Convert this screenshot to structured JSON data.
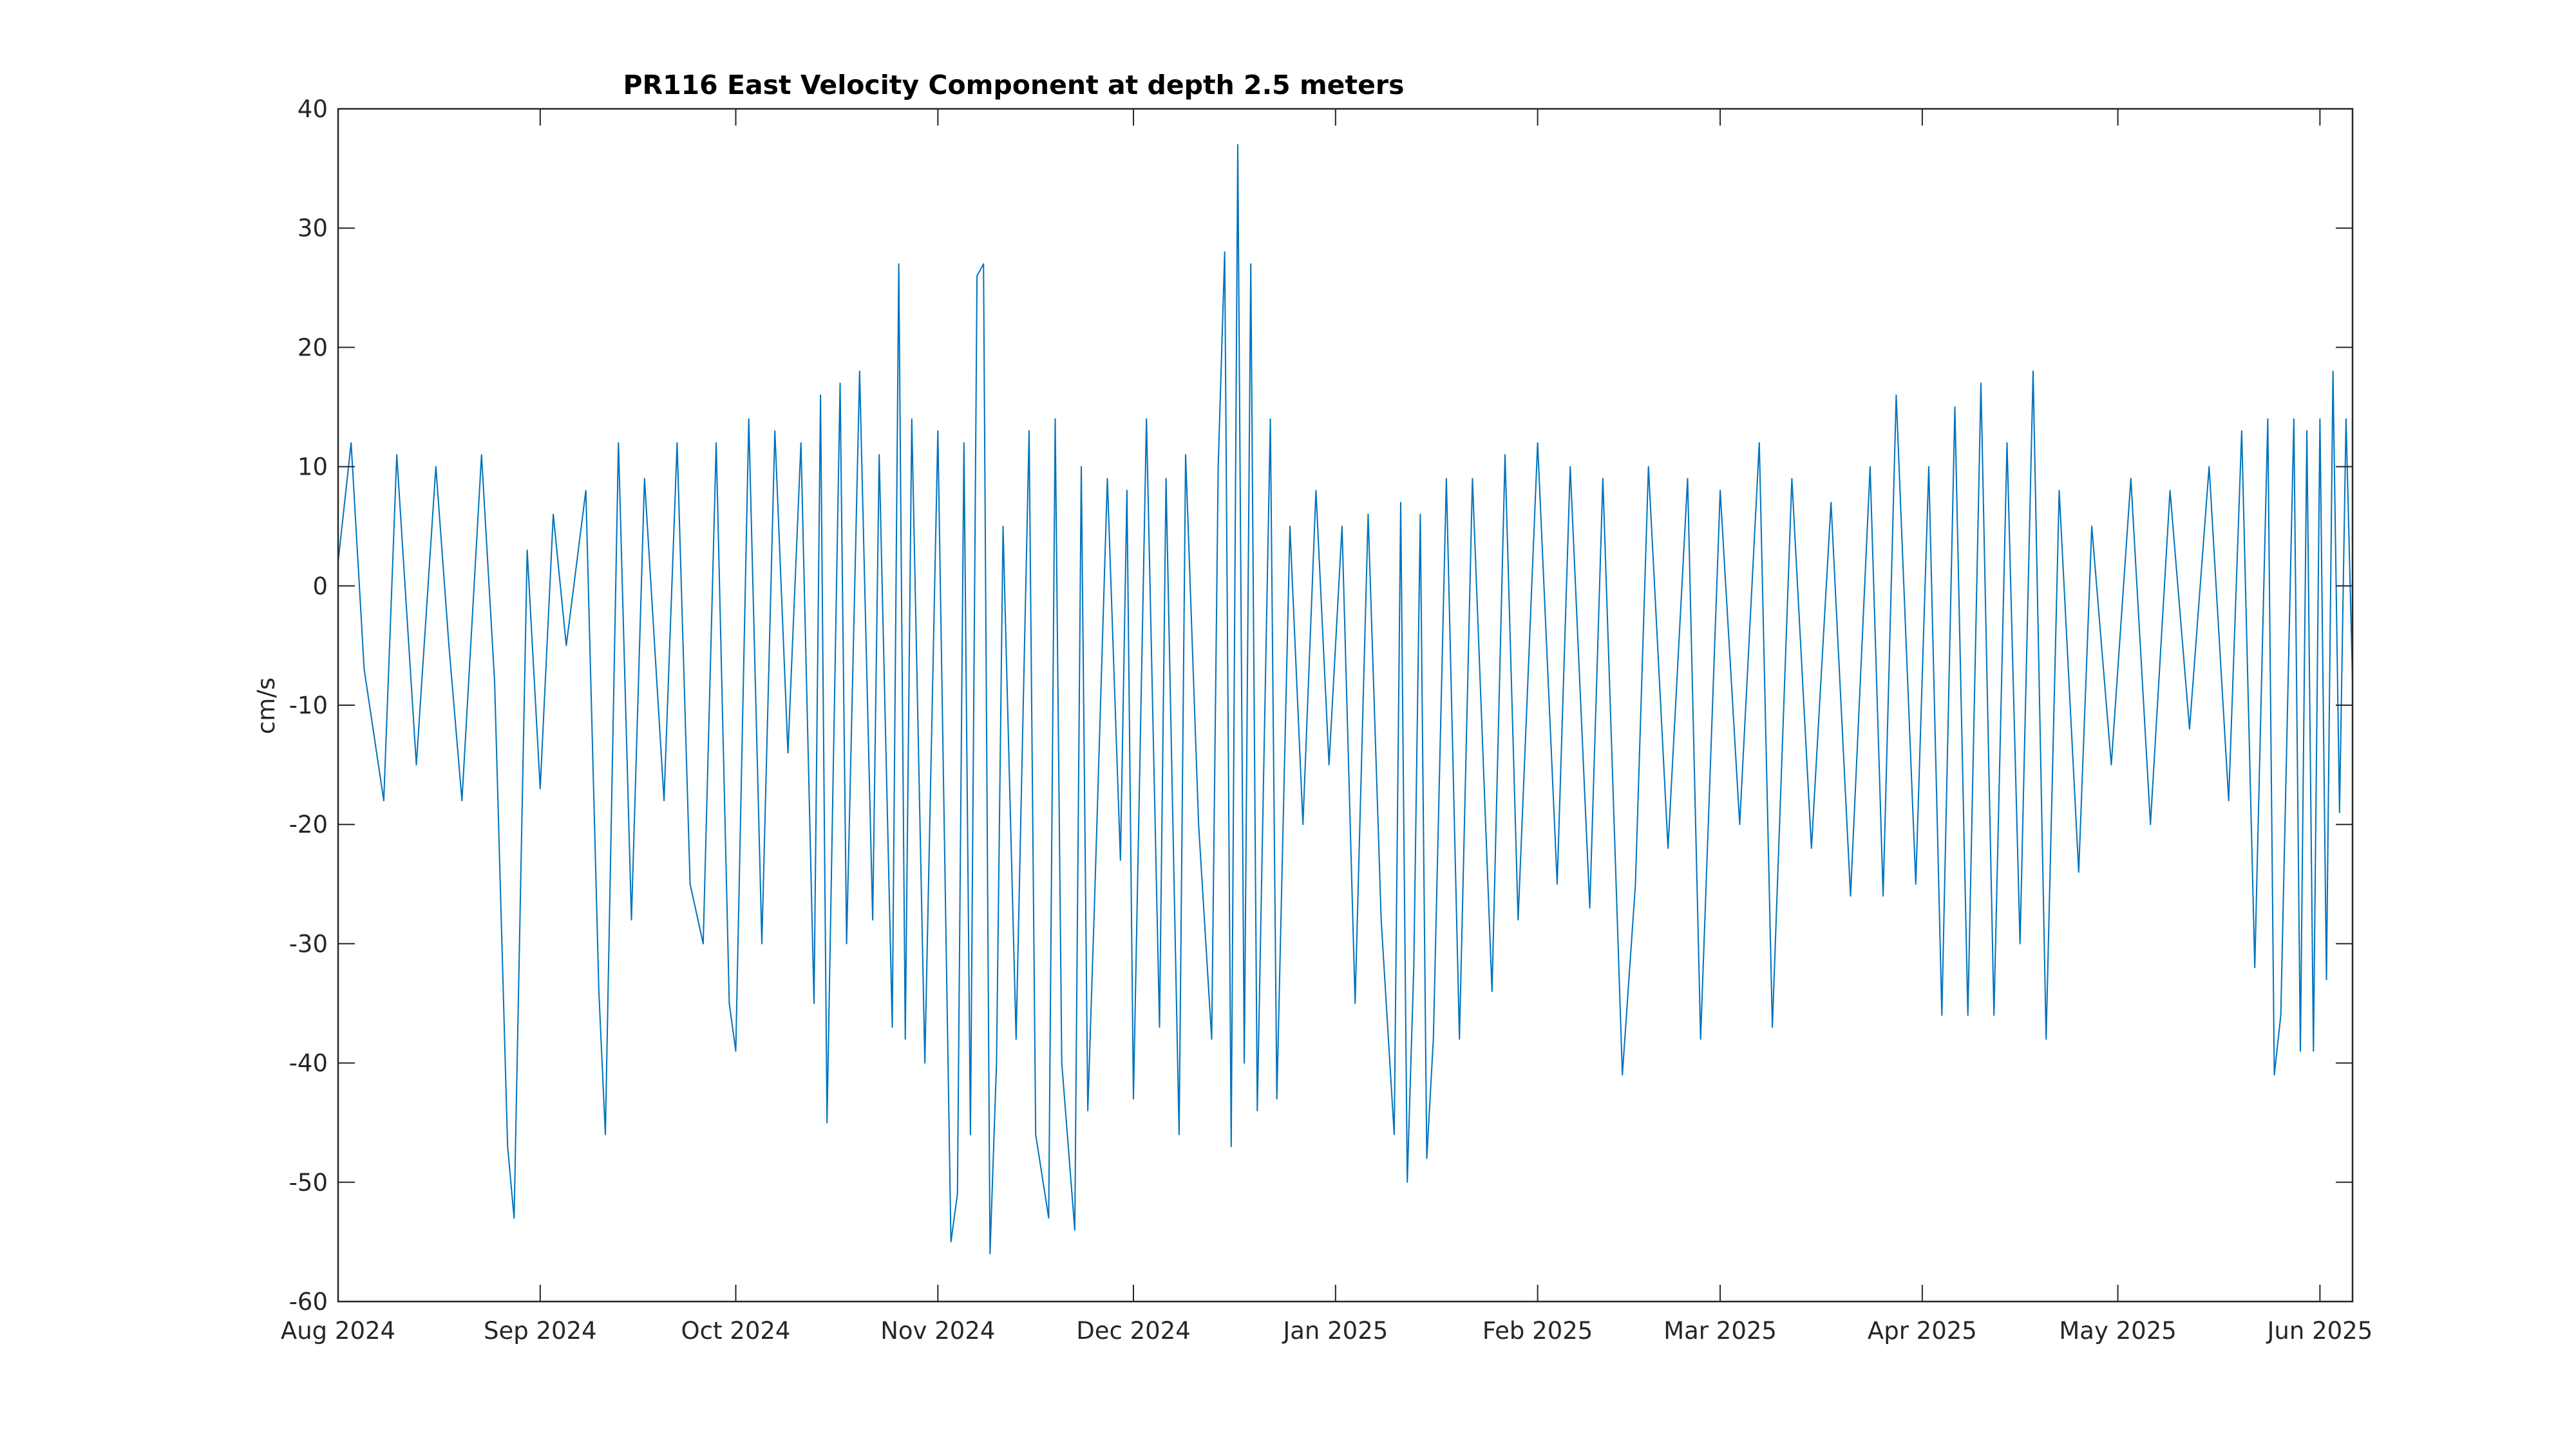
{
  "chart_data": {
    "type": "line",
    "title": "PR116 East Velocity Component at depth 2.5 meters",
    "xlabel": "",
    "ylabel": "cm/s",
    "xlim": [
      "2024-08-01",
      "2025-06-06"
    ],
    "ylim": [
      -60,
      40
    ],
    "yticks": [
      40,
      30,
      20,
      10,
      0,
      -10,
      -20,
      -30,
      -40,
      -50,
      -60
    ],
    "ytick_labels": [
      "40",
      "30",
      "20",
      "10",
      "0",
      "-10",
      "-20",
      "-30",
      "-40",
      "-50",
      "-60"
    ],
    "xticks": [
      "2024-08-01",
      "2024-09-01",
      "2024-10-01",
      "2024-11-01",
      "2024-12-01",
      "2025-01-01",
      "2025-02-01",
      "2025-03-01",
      "2025-04-01",
      "2025-05-01",
      "2025-06-01"
    ],
    "xtick_labels": [
      "Aug 2024",
      "Sep 2024",
      "Oct 2024",
      "Nov 2024",
      "Dec 2024",
      "Jan 2025",
      "Feb 2025",
      "Mar 2025",
      "Apr 2025",
      "May 2025",
      "Jun 2025"
    ],
    "grid": false,
    "series": [
      {
        "color": "#0072BD",
        "points": [
          [
            "2024-08-01",
            2
          ],
          [
            "2024-08-03",
            12
          ],
          [
            "2024-08-05",
            -7
          ],
          [
            "2024-08-08",
            -18
          ],
          [
            "2024-08-10",
            11
          ],
          [
            "2024-08-13",
            -15
          ],
          [
            "2024-08-16",
            10
          ],
          [
            "2024-08-18",
            -5
          ],
          [
            "2024-08-20",
            -18
          ],
          [
            "2024-08-23",
            11
          ],
          [
            "2024-08-25",
            -8
          ],
          [
            "2024-08-27",
            -47
          ],
          [
            "2024-08-28",
            -53
          ],
          [
            "2024-08-30",
            3
          ],
          [
            "2024-09-01",
            -17
          ],
          [
            "2024-09-03",
            6
          ],
          [
            "2024-09-05",
            -5
          ],
          [
            "2024-09-08",
            8
          ],
          [
            "2024-09-10",
            -34
          ],
          [
            "2024-09-11",
            -46
          ],
          [
            "2024-09-13",
            12
          ],
          [
            "2024-09-15",
            -28
          ],
          [
            "2024-09-17",
            9
          ],
          [
            "2024-09-20",
            -18
          ],
          [
            "2024-09-22",
            12
          ],
          [
            "2024-09-24",
            -25
          ],
          [
            "2024-09-26",
            -30
          ],
          [
            "2024-09-28",
            12
          ],
          [
            "2024-09-30",
            -35
          ],
          [
            "2024-10-01",
            -39
          ],
          [
            "2024-10-03",
            14
          ],
          [
            "2024-10-05",
            -30
          ],
          [
            "2024-10-07",
            13
          ],
          [
            "2024-10-09",
            -14
          ],
          [
            "2024-10-11",
            12
          ],
          [
            "2024-10-13",
            -35
          ],
          [
            "2024-10-14",
            16
          ],
          [
            "2024-10-15",
            -45
          ],
          [
            "2024-10-17",
            17
          ],
          [
            "2024-10-18",
            -30
          ],
          [
            "2024-10-20",
            18
          ],
          [
            "2024-10-22",
            -28
          ],
          [
            "2024-10-23",
            11
          ],
          [
            "2024-10-25",
            -37
          ],
          [
            "2024-10-26",
            27
          ],
          [
            "2024-10-27",
            -38
          ],
          [
            "2024-10-28",
            14
          ],
          [
            "2024-10-30",
            -40
          ],
          [
            "2024-11-01",
            13
          ],
          [
            "2024-11-03",
            -55
          ],
          [
            "2024-11-04",
            -51
          ],
          [
            "2024-11-05",
            12
          ],
          [
            "2024-11-06",
            -46
          ],
          [
            "2024-11-07",
            26
          ],
          [
            "2024-11-08",
            27
          ],
          [
            "2024-11-09",
            -56
          ],
          [
            "2024-11-10",
            -40
          ],
          [
            "2024-11-11",
            5
          ],
          [
            "2024-11-13",
            -38
          ],
          [
            "2024-11-15",
            13
          ],
          [
            "2024-11-16",
            -46
          ],
          [
            "2024-11-18",
            -53
          ],
          [
            "2024-11-19",
            14
          ],
          [
            "2024-11-20",
            -40
          ],
          [
            "2024-11-21",
            -47
          ],
          [
            "2024-11-22",
            -54
          ],
          [
            "2024-11-23",
            10
          ],
          [
            "2024-11-24",
            -44
          ],
          [
            "2024-11-25",
            -27
          ],
          [
            "2024-11-27",
            9
          ],
          [
            "2024-11-29",
            -23
          ],
          [
            "2024-11-30",
            8
          ],
          [
            "2024-12-01",
            -43
          ],
          [
            "2024-12-03",
            14
          ],
          [
            "2024-12-05",
            -37
          ],
          [
            "2024-12-06",
            9
          ],
          [
            "2024-12-08",
            -46
          ],
          [
            "2024-12-09",
            11
          ],
          [
            "2024-12-11",
            -20
          ],
          [
            "2024-12-13",
            -38
          ],
          [
            "2024-12-14",
            10
          ],
          [
            "2024-12-15",
            28
          ],
          [
            "2024-12-16",
            -47
          ],
          [
            "2024-12-17",
            37
          ],
          [
            "2024-12-18",
            -40
          ],
          [
            "2024-12-19",
            27
          ],
          [
            "2024-12-20",
            -44
          ],
          [
            "2024-12-22",
            14
          ],
          [
            "2024-12-23",
            -43
          ],
          [
            "2024-12-25",
            5
          ],
          [
            "2024-12-27",
            -20
          ],
          [
            "2024-12-29",
            8
          ],
          [
            "2024-12-31",
            -15
          ],
          [
            "2025-01-02",
            5
          ],
          [
            "2025-01-04",
            -35
          ],
          [
            "2025-01-06",
            6
          ],
          [
            "2025-01-08",
            -28
          ],
          [
            "2025-01-10",
            -46
          ],
          [
            "2025-01-11",
            7
          ],
          [
            "2025-01-12",
            -50
          ],
          [
            "2025-01-13",
            -32
          ],
          [
            "2025-01-14",
            6
          ],
          [
            "2025-01-15",
            -48
          ],
          [
            "2025-01-16",
            -38
          ],
          [
            "2025-01-18",
            9
          ],
          [
            "2025-01-20",
            -38
          ],
          [
            "2025-01-22",
            9
          ],
          [
            "2025-01-25",
            -34
          ],
          [
            "2025-01-27",
            11
          ],
          [
            "2025-01-29",
            -28
          ],
          [
            "2025-02-01",
            12
          ],
          [
            "2025-02-04",
            -25
          ],
          [
            "2025-02-06",
            10
          ],
          [
            "2025-02-09",
            -27
          ],
          [
            "2025-02-11",
            9
          ],
          [
            "2025-02-14",
            -41
          ],
          [
            "2025-02-16",
            -25
          ],
          [
            "2025-02-18",
            10
          ],
          [
            "2025-02-21",
            -22
          ],
          [
            "2025-02-24",
            9
          ],
          [
            "2025-02-26",
            -38
          ],
          [
            "2025-03-01",
            8
          ],
          [
            "2025-03-04",
            -20
          ],
          [
            "2025-03-07",
            12
          ],
          [
            "2025-03-09",
            -37
          ],
          [
            "2025-03-12",
            9
          ],
          [
            "2025-03-15",
            -22
          ],
          [
            "2025-03-18",
            7
          ],
          [
            "2025-03-21",
            -26
          ],
          [
            "2025-03-24",
            10
          ],
          [
            "2025-03-26",
            -26
          ],
          [
            "2025-03-28",
            16
          ],
          [
            "2025-03-31",
            -25
          ],
          [
            "2025-04-02",
            10
          ],
          [
            "2025-04-04",
            -36
          ],
          [
            "2025-04-06",
            15
          ],
          [
            "2025-04-08",
            -36
          ],
          [
            "2025-04-10",
            17
          ],
          [
            "2025-04-12",
            -36
          ],
          [
            "2025-04-14",
            12
          ],
          [
            "2025-04-16",
            -30
          ],
          [
            "2025-04-18",
            18
          ],
          [
            "2025-04-20",
            -38
          ],
          [
            "2025-04-22",
            8
          ],
          [
            "2025-04-25",
            -24
          ],
          [
            "2025-04-27",
            5
          ],
          [
            "2025-04-30",
            -15
          ],
          [
            "2025-05-03",
            9
          ],
          [
            "2025-05-06",
            -20
          ],
          [
            "2025-05-09",
            8
          ],
          [
            "2025-05-12",
            -12
          ],
          [
            "2025-05-15",
            10
          ],
          [
            "2025-05-18",
            -18
          ],
          [
            "2025-05-20",
            13
          ],
          [
            "2025-05-22",
            -32
          ],
          [
            "2025-05-24",
            14
          ],
          [
            "2025-05-25",
            -41
          ],
          [
            "2025-05-26",
            -36
          ],
          [
            "2025-05-28",
            14
          ],
          [
            "2025-05-29",
            -39
          ],
          [
            "2025-05-30",
            13
          ],
          [
            "2025-05-31",
            -39
          ],
          [
            "2025-06-01",
            14
          ],
          [
            "2025-06-02",
            -33
          ],
          [
            "2025-06-03",
            18
          ],
          [
            "2025-06-04",
            -19
          ],
          [
            "2025-06-05",
            14
          ],
          [
            "2025-06-06",
            -8
          ]
        ]
      }
    ]
  }
}
